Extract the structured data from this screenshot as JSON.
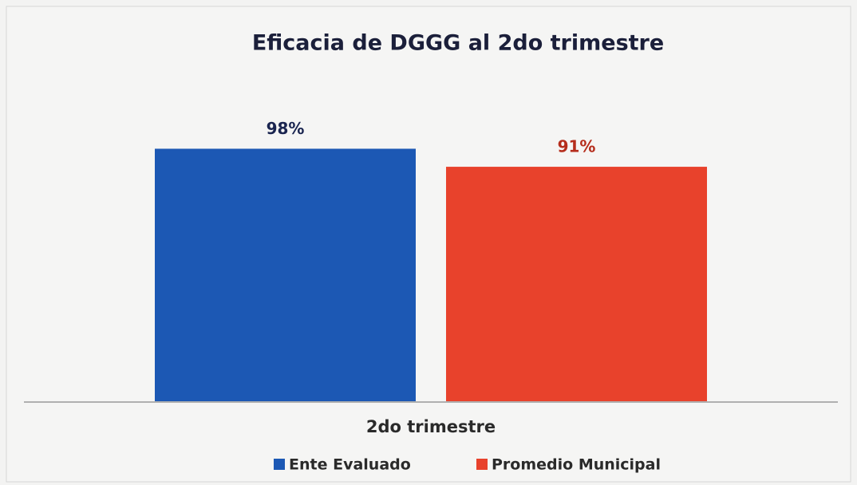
{
  "chart_data": {
    "type": "bar",
    "title": "Eficacia de DGGG al 2do trimestre",
    "categories": [
      "2do trimestre"
    ],
    "series": [
      {
        "name": "Ente Evaluado",
        "color": "#1c58b4",
        "label_color": "#1a2550",
        "values": [
          98
        ],
        "value_labels": [
          "98%"
        ]
      },
      {
        "name": "Promedio Municipal",
        "color": "#e8422c",
        "label_color": "#b52d1c",
        "values": [
          91
        ],
        "value_labels": [
          "91%"
        ]
      }
    ],
    "ylim": [
      0,
      100
    ],
    "grid": false,
    "legend": "bottom"
  }
}
